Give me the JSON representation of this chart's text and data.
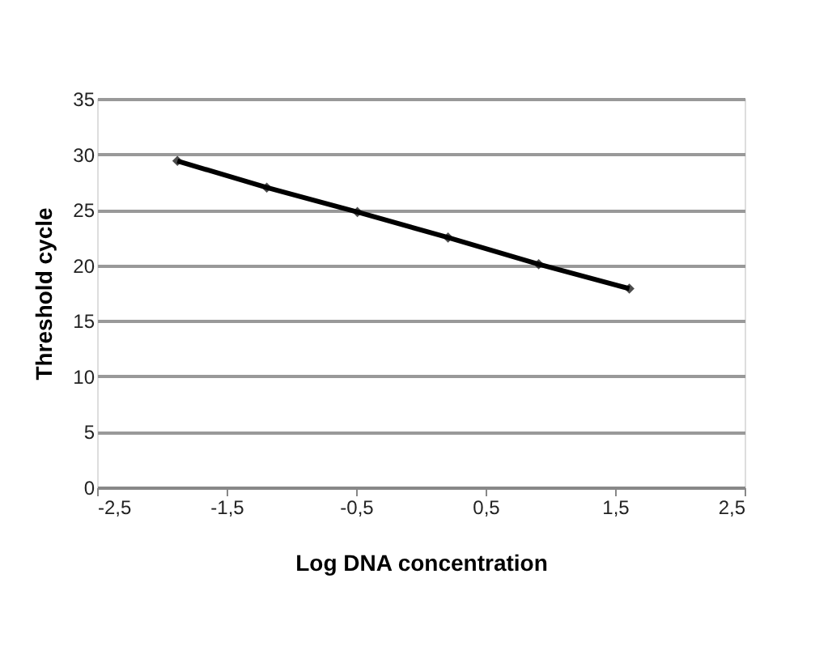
{
  "chart_data": {
    "type": "line",
    "xlabel": "Log DNA concentration",
    "ylabel": "Threshold cycle",
    "x": [
      -1.88,
      -1.19,
      -0.49,
      0.21,
      0.91,
      1.61
    ],
    "series": [
      {
        "color": "#000000",
        "values": [
          29.4,
          27.0,
          24.8,
          22.5,
          20.1,
          17.9
        ]
      }
    ],
    "xlim": [
      -2.5,
      2.5
    ],
    "xticks": [
      {
        "value": -2.5,
        "label": "-2,5"
      },
      {
        "value": -1.5,
        "label": "-1,5"
      },
      {
        "value": -0.5,
        "label": "-0,5"
      },
      {
        "value": 0.5,
        "label": "0,5"
      },
      {
        "value": 1.5,
        "label": "1,5"
      },
      {
        "value": 2.5,
        "label": "2,5"
      }
    ],
    "ylim": [
      0,
      35
    ],
    "yticks": [
      0,
      5,
      10,
      15,
      20,
      25,
      30,
      35
    ],
    "grid": "y",
    "marker": "diamond",
    "line_style": "solid",
    "legend": false
  }
}
